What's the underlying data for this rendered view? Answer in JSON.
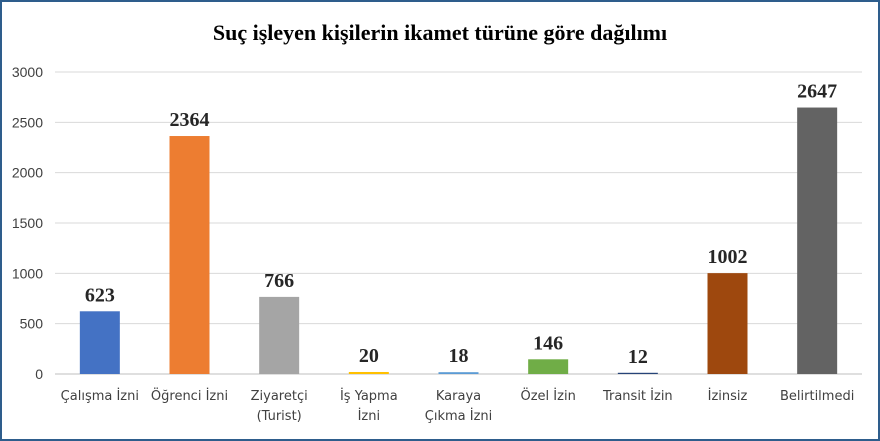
{
  "chart_data": {
    "type": "bar",
    "title": "Suç işleyen kişilerin ikamet türüne göre dağılımı",
    "xlabel": "",
    "ylabel": "",
    "ylim": [
      0,
      3000
    ],
    "yticks": [
      0,
      500,
      1000,
      1500,
      2000,
      2500,
      3000
    ],
    "grid": true,
    "legend": "none",
    "categories": [
      [
        "Çalışma İzni"
      ],
      [
        "Öğrenci İzni"
      ],
      [
        "Ziyaretçi",
        "(Turist)"
      ],
      [
        "İş Yapma",
        "İzni"
      ],
      [
        "Karaya",
        "Çıkma İzni"
      ],
      [
        "Özel İzin"
      ],
      [
        "Transit İzin"
      ],
      [
        "İzinsiz"
      ],
      [
        "Belirtilmedi"
      ]
    ],
    "values": [
      623,
      2364,
      766,
      20,
      18,
      146,
      12,
      1002,
      2647
    ],
    "colors": [
      "#4472c4",
      "#ed7d31",
      "#a5a5a5",
      "#ffc000",
      "#5b9bd5",
      "#70ad47",
      "#264478",
      "#9e480e",
      "#636363"
    ]
  }
}
